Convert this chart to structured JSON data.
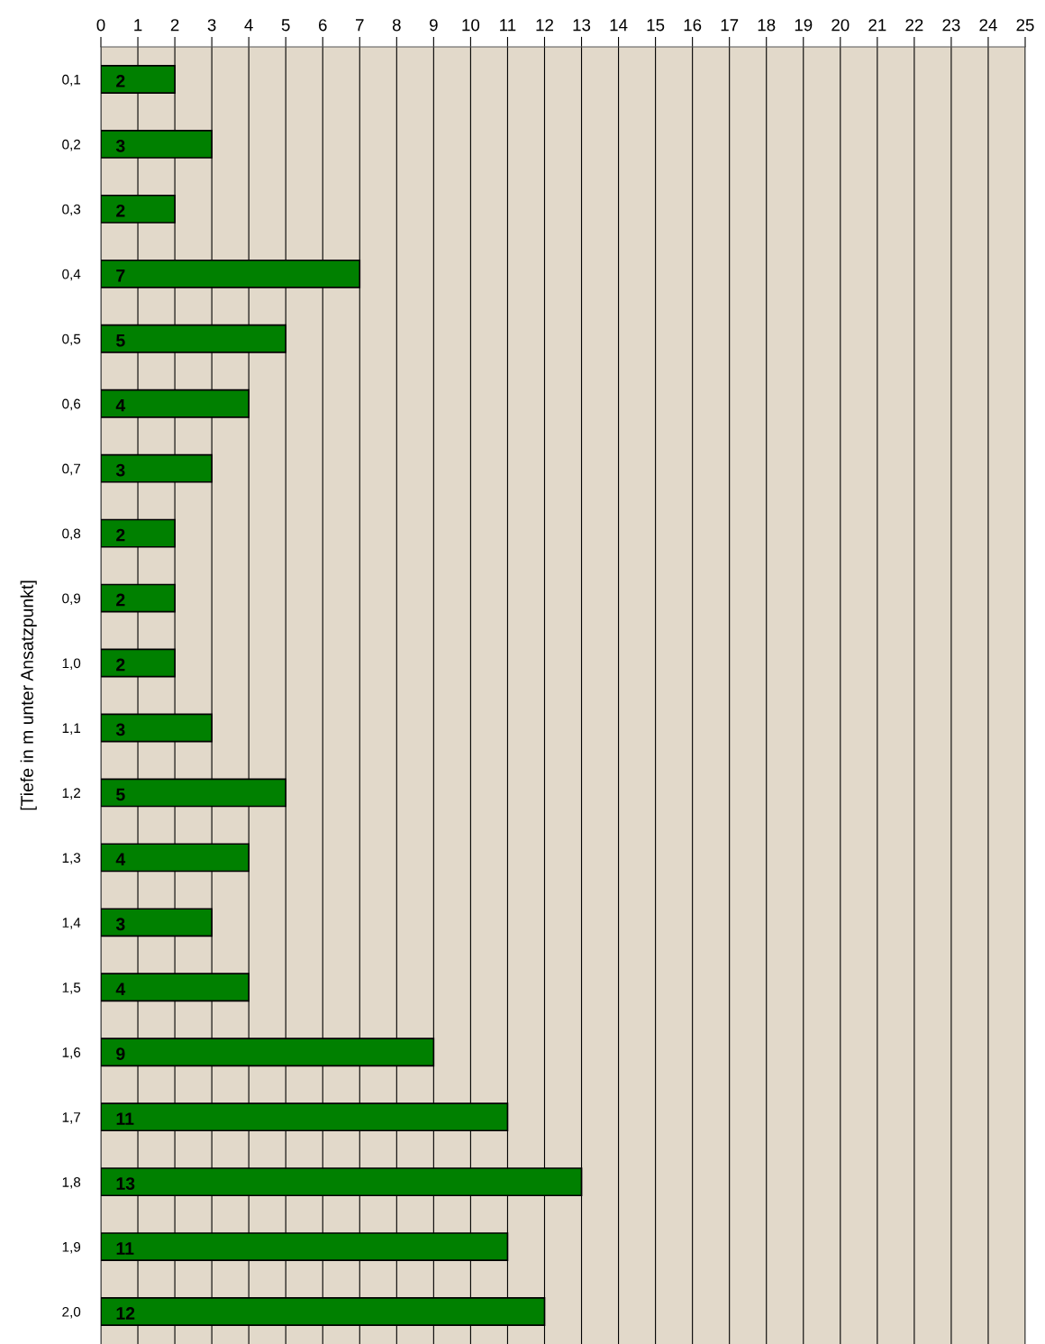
{
  "chart_data": {
    "type": "bar",
    "orientation": "horizontal",
    "ylabel": "[Tiefe in m unter Ansatzpunkt]",
    "categories": [
      "0,1",
      "0,2",
      "0,3",
      "0,4",
      "0,5",
      "0,6",
      "0,7",
      "0,8",
      "0,9",
      "1,0",
      "1,1",
      "1,2",
      "1,3",
      "1,4",
      "1,5",
      "1,6",
      "1,7",
      "1,8",
      "1,9",
      "2,0"
    ],
    "values": [
      2,
      3,
      2,
      7,
      5,
      4,
      3,
      2,
      2,
      2,
      3,
      5,
      4,
      3,
      4,
      9,
      11,
      13,
      11,
      12
    ],
    "color": "#008000",
    "xlim": [
      0,
      25
    ],
    "xticks": [
      0,
      1,
      2,
      3,
      4,
      5,
      6,
      7,
      8,
      9,
      10,
      11,
      12,
      13,
      14,
      15,
      16,
      17,
      18,
      19,
      20,
      21,
      22,
      23,
      24,
      25
    ],
    "grid": "x",
    "data_labels": true,
    "legend": false
  }
}
